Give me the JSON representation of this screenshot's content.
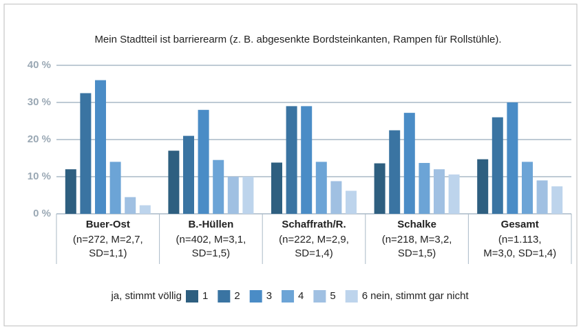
{
  "chart_data": {
    "type": "bar",
    "title": "Mein Stadtteil ist barrierearm (z. B. abgesenkte Bordsteinkanten, Rampen für Rollstühle).",
    "categories": [
      "Buer-Ost",
      "B.-Hüllen",
      "Schaffrath/R.",
      "Schalke",
      "Gesamt"
    ],
    "category_details": [
      [
        "(n=272, M=2,7,",
        "SD=1,1)"
      ],
      [
        "(n=402, M=3,1,",
        "SD=1,5)"
      ],
      [
        "(n=222, M=2,9,",
        "SD=1,4)"
      ],
      [
        "(n=218, M=3,2,",
        "SD=1,5)"
      ],
      [
        "(n=1.113,",
        "M=3,0, SD=1,4)"
      ]
    ],
    "series": [
      {
        "name": "1",
        "color": "#2e5f80",
        "values": [
          12,
          17,
          13.8,
          13.6,
          14.7
        ]
      },
      {
        "name": "2",
        "color": "#3a74a2",
        "values": [
          32.5,
          21,
          29,
          22.5,
          26
        ]
      },
      {
        "name": "3",
        "color": "#4a8cc6",
        "values": [
          36,
          28,
          29,
          27.2,
          30
        ]
      },
      {
        "name": "4",
        "color": "#6ca4d6",
        "values": [
          14,
          14.5,
          14,
          13.7,
          14
        ]
      },
      {
        "name": "5",
        "color": "#a0c0e2",
        "values": [
          4.5,
          10,
          8.8,
          12,
          9
        ]
      },
      {
        "name": "6",
        "color": "#bdd4ec",
        "values": [
          2.3,
          10,
          6.2,
          10.6,
          7.4
        ]
      }
    ],
    "legend_prefix": "ja, stimmt völlig",
    "legend_suffix": "nein, stimmt gar nicht",
    "ylim": [
      0,
      40
    ],
    "yticks": [
      {
        "value": 0,
        "label": "0 %"
      },
      {
        "value": 10,
        "label": "10 %"
      },
      {
        "value": 20,
        "label": "20 %"
      },
      {
        "value": 30,
        "label": "30 %"
      },
      {
        "value": 40,
        "label": "40 %"
      }
    ],
    "grid": true
  }
}
